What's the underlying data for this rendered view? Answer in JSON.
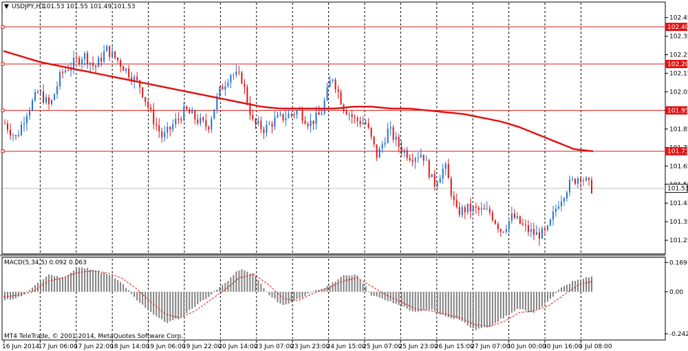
{
  "chart_data": [
    {
      "type": "candlestick",
      "title": "USDJPY,H1",
      "ohlc_text": "101.53 101.55 101.49 101.53",
      "ylim": [
        101.18,
        102.53
      ],
      "y_ticks": [
        "102.45",
        "102.35",
        "102.25",
        "102.15",
        "102.05",
        "101.95",
        "101.85",
        "101.75",
        "101.65",
        "101.55",
        "101.45",
        "101.35",
        "101.25"
      ],
      "x_labels": [
        "16 Jun 2014",
        "17 Jun 06:00",
        "17 Jun 22:00",
        "18 Jun 14:00",
        "19 Jun 06:00",
        "19 Jun 22:00",
        "20 Jun 14:00",
        "23 Jun 07:00",
        "23 Jun 23:00",
        "24 Jun 15:00",
        "25 Jun 07:00",
        "25 Jun 23:00",
        "26 Jun 15:00",
        "27 Jun 07:00",
        "30 Jun 00:00",
        "30 Jun 16:00",
        "1 Jul 08:00"
      ],
      "horizontal_levels": [
        {
          "label": "102.40",
          "value": 102.4
        },
        {
          "label": "102.20",
          "value": 102.2
        },
        {
          "label": "101.95",
          "value": 101.95
        },
        {
          "label": "101.73",
          "value": 101.73
        }
      ],
      "current_price": {
        "label": "101.53",
        "value": 101.53
      },
      "moving_average": [
        102.27,
        102.24,
        102.21,
        102.19,
        102.17,
        102.15,
        102.13,
        102.11,
        102.09,
        102.07,
        102.05,
        102.03,
        102.01,
        101.99,
        101.97,
        101.96,
        101.96,
        101.96,
        101.96,
        101.97,
        101.97,
        101.96,
        101.96,
        101.95,
        101.94,
        101.93,
        101.91,
        101.89,
        101.86,
        101.82,
        101.78,
        101.74,
        101.73
      ],
      "close_path": [
        101.88,
        101.8,
        101.95,
        102.05,
        101.97,
        102.15,
        102.2,
        102.25,
        102.18,
        102.28,
        102.22,
        102.15,
        102.08,
        101.92,
        101.8,
        101.88,
        101.95,
        101.9,
        101.86,
        102.05,
        102.15,
        102.12,
        101.88,
        101.85,
        101.9,
        101.92,
        101.95,
        101.88,
        101.93,
        102.14,
        101.97,
        101.9,
        101.88,
        101.7,
        101.85,
        101.75,
        101.7,
        101.72,
        101.55,
        101.65,
        101.4,
        101.42,
        101.41,
        101.4,
        101.3,
        101.38,
        101.32,
        101.28,
        101.29,
        101.45,
        101.55,
        101.6,
        101.53
      ]
    },
    {
      "type": "histogram",
      "title": "MACD(5,34,5) 0.092 0.063",
      "ylim": [
        -0.27,
        0.19
      ],
      "y_ticks": [
        "0.169",
        "0.00",
        "-0.242"
      ],
      "bars_path": [
        -0.05,
        -0.03,
        0.03,
        0.1,
        0.08,
        0.14,
        0.13,
        0.1,
        0.05,
        -0.05,
        -0.12,
        -0.18,
        -0.15,
        -0.08,
        -0.02,
        0.05,
        0.13,
        0.1,
        -0.02,
        -0.08,
        -0.04,
        0.0,
        0.03,
        0.09,
        0.1,
        -0.02,
        -0.05,
        -0.08,
        -0.12,
        -0.1,
        -0.14,
        -0.16,
        -0.22,
        -0.2,
        -0.15,
        -0.1,
        -0.12,
        -0.06,
        0.03,
        0.07,
        0.09
      ],
      "signal_path": [
        -0.03,
        -0.02,
        0.0,
        0.06,
        0.08,
        0.11,
        0.12,
        0.11,
        0.08,
        0.02,
        -0.06,
        -0.13,
        -0.15,
        -0.11,
        -0.05,
        0.01,
        0.08,
        0.1,
        0.04,
        -0.04,
        -0.05,
        -0.01,
        0.02,
        0.06,
        0.08,
        0.03,
        -0.02,
        -0.06,
        -0.1,
        -0.11,
        -0.13,
        -0.15,
        -0.19,
        -0.2,
        -0.17,
        -0.12,
        -0.11,
        -0.08,
        -0.02,
        0.04,
        0.06
      ]
    }
  ],
  "copyright": "MT4 TeleTrade, © 2001-2014, MetaQuotes Software Corp.",
  "colors": {
    "bull": "#1f6fd6",
    "bear": "#e01414",
    "ma": "#e01414",
    "level": "#e01414",
    "grid": "#000000",
    "macd_bar": "#808080",
    "signal": "#e01414"
  }
}
